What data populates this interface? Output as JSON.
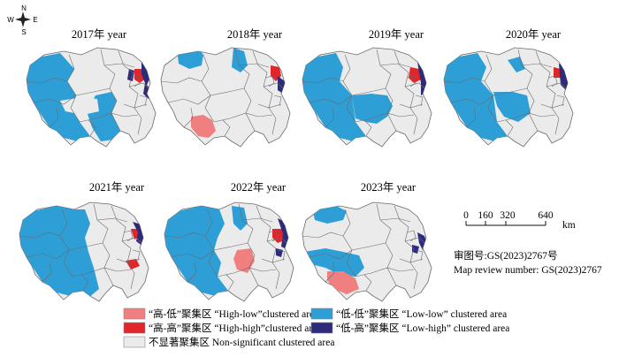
{
  "compass": {
    "north": "N",
    "south": "S",
    "west": "W",
    "east": "E"
  },
  "panels": [
    {
      "title": "2017年 year"
    },
    {
      "title": "2018年 year"
    },
    {
      "title": "2019年 year"
    },
    {
      "title": "2020年 year"
    },
    {
      "title": "2021年 year"
    },
    {
      "title": "2022年 year"
    },
    {
      "title": "2023年 year"
    }
  ],
  "scale_bar": {
    "ticks": [
      "0",
      "160",
      "320",
      "640"
    ],
    "unit": "km"
  },
  "review": {
    "line_cn": "审图号:GS(2023)2767号",
    "line_en": "Map review number: GS(2023)2767"
  },
  "legend": [
    {
      "label": "“高-低”聚集区 “High-low”clustered area",
      "color": "#f08080"
    },
    {
      "label": "“高-高”聚集区 “High-high”clustered area",
      "color": "#e0262a"
    },
    {
      "label": "不显著聚集区 Non-significant clustered area",
      "color": "#ebebeb"
    },
    {
      "label": "“低-低”聚集区 “Low-low” clustered area",
      "color": "#2e9fd6"
    },
    {
      "label": "“低-高”聚集区 “Low-high” clustered area",
      "color": "#2e2b7a"
    }
  ],
  "colors": {
    "high_low": "#f08080",
    "high_high": "#e0262a",
    "non_significant": "#ebebeb",
    "low_low": "#2e9fd6",
    "low_high": "#2e2b7a",
    "border": "#6a6a6a"
  }
}
